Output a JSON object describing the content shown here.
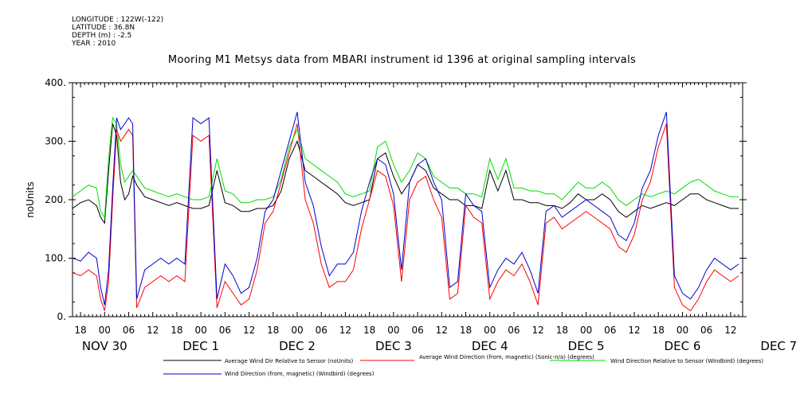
{
  "meta": {
    "longitude": "LONGITUDE : 122W(-122)",
    "latitude": "LATITUDE : 36.8N",
    "depth": "DEPTH (m) : -2.5",
    "year": "YEAR : 2010"
  },
  "chart_data": {
    "type": "line",
    "title": "Mooring M1 Metsys data from MBARI instrument id 1396 at original sampling intervals",
    "ylabel": "noUnits",
    "xlabel": "",
    "ylim": [
      0,
      400
    ],
    "yticks": [
      0,
      100,
      200,
      300,
      400
    ],
    "ytick_labels": [
      "0.",
      "100.",
      "200.",
      "300.",
      "400."
    ],
    "xlim_hours": [
      -8,
      159
    ],
    "hour_ticks": [
      {
        "h": -6,
        "label": "18"
      },
      {
        "h": 0,
        "label": "00"
      },
      {
        "h": 6,
        "label": "06"
      },
      {
        "h": 12,
        "label": "12"
      },
      {
        "h": 18,
        "label": "18"
      },
      {
        "h": 24,
        "label": "00"
      },
      {
        "h": 30,
        "label": "06"
      },
      {
        "h": 36,
        "label": "12"
      },
      {
        "h": 42,
        "label": "18"
      },
      {
        "h": 48,
        "label": "00"
      },
      {
        "h": 54,
        "label": "06"
      },
      {
        "h": 60,
        "label": "12"
      },
      {
        "h": 66,
        "label": "18"
      },
      {
        "h": 72,
        "label": "00"
      },
      {
        "h": 78,
        "label": "06"
      },
      {
        "h": 84,
        "label": "12"
      },
      {
        "h": 90,
        "label": "18"
      },
      {
        "h": 96,
        "label": "00"
      },
      {
        "h": 102,
        "label": "06"
      },
      {
        "h": 108,
        "label": "12"
      },
      {
        "h": 114,
        "label": "18"
      },
      {
        "h": 120,
        "label": "00"
      },
      {
        "h": 126,
        "label": "06"
      },
      {
        "h": 132,
        "label": "12"
      },
      {
        "h": 138,
        "label": "18"
      },
      {
        "h": 144,
        "label": "00"
      },
      {
        "h": 150,
        "label": "06"
      },
      {
        "h": 156,
        "label": "12"
      }
    ],
    "day_labels": [
      {
        "h": 0,
        "label": "NOV 30"
      },
      {
        "h": 24,
        "label": "DEC  1"
      },
      {
        "h": 48,
        "label": "DEC  2"
      },
      {
        "h": 72,
        "label": "DEC  3"
      },
      {
        "h": 96,
        "label": "DEC  4"
      },
      {
        "h": 120,
        "label": "DEC  5"
      },
      {
        "h": 144,
        "label": "DEC  6"
      },
      {
        "h": 168,
        "label": "DEC  7"
      }
    ],
    "series": [
      {
        "name": "Average Wind Dir Relative to Sensor (noUnits)",
        "color": "#000000",
        "x": [
          -8,
          -6,
          -4,
          -2,
          -1,
          0,
          1,
          2,
          3,
          4,
          5,
          6,
          7,
          8,
          10,
          12,
          14,
          16,
          18,
          20,
          22,
          24,
          26,
          28,
          30,
          32,
          34,
          36,
          38,
          40,
          42,
          44,
          46,
          48,
          50,
          52,
          54,
          56,
          58,
          60,
          62,
          64,
          66,
          68,
          70,
          72,
          74,
          76,
          78,
          80,
          82,
          84,
          86,
          88,
          90,
          92,
          94,
          96,
          98,
          100,
          102,
          104,
          106,
          108,
          110,
          112,
          114,
          116,
          118,
          120,
          122,
          124,
          126,
          128,
          130,
          132,
          134,
          136,
          138,
          140,
          142,
          144,
          146,
          148,
          150,
          152,
          154,
          156,
          158
        ],
        "y": [
          185,
          195,
          200,
          190,
          170,
          160,
          250,
          330,
          310,
          230,
          200,
          210,
          240,
          225,
          205,
          200,
          195,
          190,
          195,
          190,
          185,
          185,
          190,
          250,
          195,
          190,
          180,
          180,
          185,
          185,
          190,
          215,
          270,
          300,
          250,
          240,
          230,
          220,
          210,
          195,
          190,
          195,
          200,
          270,
          280,
          240,
          210,
          230,
          260,
          250,
          220,
          210,
          200,
          200,
          190,
          190,
          185,
          250,
          215,
          250,
          200,
          200,
          195,
          195,
          190,
          190,
          185,
          195,
          210,
          200,
          200,
          210,
          200,
          180,
          170,
          180,
          190,
          185,
          190,
          195,
          190,
          200,
          210,
          210,
          200,
          195,
          190,
          185,
          185
        ]
      },
      {
        "name": "Average Wind Direction (from, magnetic) (Sonic-n/a) (degrees)",
        "color": "#ff0000",
        "x": [
          -8,
          -6,
          -4,
          -2,
          -1,
          0,
          1,
          2,
          3,
          4,
          5,
          6,
          7,
          8,
          10,
          12,
          14,
          16,
          18,
          20,
          22,
          24,
          26,
          28,
          30,
          32,
          34,
          36,
          38,
          40,
          42,
          44,
          46,
          48,
          50,
          52,
          54,
          56,
          58,
          60,
          62,
          64,
          66,
          68,
          70,
          72,
          74,
          76,
          78,
          80,
          82,
          84,
          86,
          88,
          90,
          92,
          94,
          96,
          98,
          100,
          102,
          104,
          106,
          108,
          110,
          112,
          114,
          116,
          118,
          120,
          122,
          124,
          126,
          128,
          130,
          132,
          134,
          136,
          138,
          140,
          142,
          144,
          146,
          148,
          150,
          152,
          154,
          156,
          158
        ],
        "y": [
          75,
          70,
          80,
          70,
          30,
          10,
          60,
          200,
          320,
          300,
          310,
          320,
          310,
          15,
          50,
          60,
          70,
          60,
          70,
          60,
          310,
          300,
          310,
          15,
          60,
          40,
          20,
          30,
          80,
          160,
          180,
          230,
          280,
          330,
          200,
          160,
          90,
          50,
          60,
          60,
          80,
          150,
          200,
          250,
          240,
          190,
          60,
          200,
          230,
          240,
          200,
          170,
          30,
          40,
          190,
          170,
          160,
          30,
          60,
          80,
          70,
          90,
          60,
          20,
          160,
          170,
          150,
          160,
          170,
          180,
          170,
          160,
          150,
          120,
          110,
          140,
          200,
          230,
          290,
          330,
          50,
          20,
          10,
          30,
          60,
          80,
          70,
          60,
          70
        ]
      },
      {
        "name": "Wind Direction Relative to Sensor (Windbird) (degrees)",
        "color": "#00dd00",
        "x": [
          -8,
          -6,
          -4,
          -2,
          -1,
          0,
          1,
          2,
          3,
          4,
          5,
          6,
          7,
          8,
          10,
          12,
          14,
          16,
          18,
          20,
          22,
          24,
          26,
          28,
          30,
          32,
          34,
          36,
          38,
          40,
          42,
          44,
          46,
          48,
          50,
          52,
          54,
          56,
          58,
          60,
          62,
          64,
          66,
          68,
          70,
          72,
          74,
          76,
          78,
          80,
          82,
          84,
          86,
          88,
          90,
          92,
          94,
          96,
          98,
          100,
          102,
          104,
          106,
          108,
          110,
          112,
          114,
          116,
          118,
          120,
          122,
          124,
          126,
          128,
          130,
          132,
          134,
          136,
          138,
          140,
          142,
          144,
          146,
          148,
          150,
          152,
          154,
          156,
          158
        ],
        "y": [
          205,
          215,
          225,
          220,
          180,
          170,
          270,
          340,
          330,
          260,
          230,
          240,
          250,
          240,
          220,
          215,
          210,
          205,
          210,
          205,
          200,
          200,
          205,
          270,
          215,
          210,
          195,
          195,
          200,
          200,
          205,
          235,
          290,
          320,
          270,
          260,
          250,
          240,
          230,
          210,
          205,
          210,
          215,
          290,
          300,
          260,
          230,
          250,
          280,
          270,
          240,
          230,
          220,
          220,
          210,
          210,
          205,
          270,
          235,
          270,
          220,
          220,
          215,
          215,
          210,
          210,
          200,
          215,
          230,
          220,
          220,
          230,
          220,
          200,
          190,
          200,
          210,
          205,
          210,
          215,
          210,
          220,
          230,
          235,
          225,
          215,
          210,
          205,
          205
        ]
      },
      {
        "name": "Wind Direction (from, magnetic) (Windbird) (degrees)",
        "color": "#0000cc",
        "x": [
          -8,
          -6,
          -4,
          -2,
          -1,
          0,
          1,
          2,
          3,
          4,
          5,
          6,
          7,
          8,
          10,
          12,
          14,
          16,
          18,
          20,
          22,
          24,
          26,
          28,
          30,
          32,
          34,
          36,
          38,
          40,
          42,
          44,
          46,
          48,
          50,
          52,
          54,
          56,
          58,
          60,
          62,
          64,
          66,
          68,
          70,
          72,
          74,
          76,
          78,
          80,
          82,
          84,
          86,
          88,
          90,
          92,
          94,
          96,
          98,
          100,
          102,
          104,
          106,
          108,
          110,
          112,
          114,
          116,
          118,
          120,
          122,
          124,
          126,
          128,
          130,
          132,
          134,
          136,
          138,
          140,
          142,
          144,
          146,
          148,
          150,
          152,
          154,
          156,
          158
        ],
        "y": [
          100,
          95,
          110,
          100,
          50,
          20,
          80,
          220,
          340,
          320,
          330,
          340,
          330,
          30,
          80,
          90,
          100,
          90,
          100,
          90,
          340,
          330,
          340,
          30,
          90,
          70,
          40,
          50,
          100,
          180,
          200,
          250,
          300,
          350,
          230,
          190,
          120,
          70,
          90,
          90,
          110,
          180,
          230,
          270,
          260,
          210,
          80,
          230,
          260,
          270,
          230,
          200,
          50,
          60,
          210,
          190,
          180,
          50,
          80,
          100,
          90,
          110,
          80,
          40,
          180,
          190,
          170,
          180,
          190,
          200,
          190,
          180,
          170,
          140,
          130,
          160,
          220,
          250,
          310,
          350,
          70,
          40,
          30,
          50,
          80,
          100,
          90,
          80,
          90
        ]
      }
    ],
    "legend": [
      {
        "label": "Average Wind Dir Relative to Sensor (noUnits)",
        "color": "#000000"
      },
      {
        "label": "Average Wind Direction (from, magnetic) (Sonic-n/a) (degrees)",
        "color": "#ff0000"
      },
      {
        "label": "Wind Direction Relative to Sensor (Windbird) (degrees)",
        "color": "#00dd00"
      },
      {
        "label": "Wind Direction (from, magnetic) (Windbird) (degrees)",
        "color": "#0000cc"
      }
    ],
    "grid": false,
    "legend_placement": "bottom"
  }
}
